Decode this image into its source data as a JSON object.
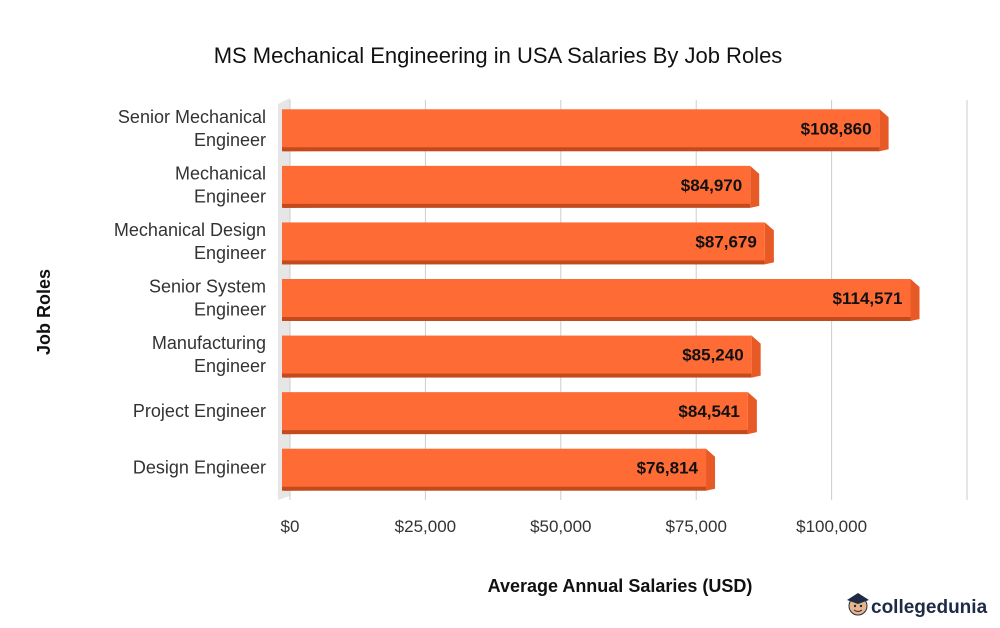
{
  "chart_data": {
    "type": "bar",
    "orientation": "horizontal",
    "title": "MS Mechanical Engineering in USA Salaries By Job Roles",
    "xlabel": "Average Annual Salaries (USD)",
    "ylabel": "Job Roles",
    "categories": [
      [
        "Senior Mechanical",
        "Engineer"
      ],
      [
        "Mechanical",
        "Engineer"
      ],
      [
        "Mechanical Design",
        "Engineer"
      ],
      [
        "Senior System",
        "Engineer"
      ],
      [
        "Manufacturing",
        "Engineer"
      ],
      [
        "Project Engineer"
      ],
      [
        "Design Engineer"
      ]
    ],
    "values": [
      108860,
      84970,
      87679,
      114571,
      85240,
      84541,
      76814
    ],
    "value_labels": [
      "$108,860",
      "$84,970",
      "$87,679",
      "$114,571",
      "$85,240",
      "$84,541",
      "$76,814"
    ],
    "xticks": [
      0,
      25000,
      50000,
      75000,
      100000,
      125000
    ],
    "xtick_labels": [
      "$0",
      "$25,000",
      "$50,000",
      "$75,000",
      "$100,000",
      ""
    ],
    "xlim": [
      0,
      125000
    ],
    "grid": true,
    "bar_color": "#ff6b35",
    "bar_shadow_color": "#c24a1c"
  },
  "branding": {
    "logo_text": "collegedunia",
    "logo_icon": "student-face-icon"
  }
}
